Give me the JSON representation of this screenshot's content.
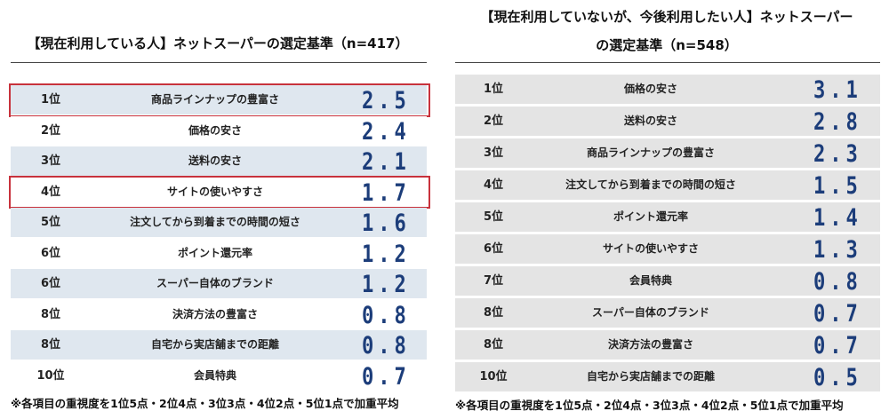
{
  "chart_data": [
    {
      "type": "table",
      "title": "【現在利用している人】ネットスーパーの選定基準（n=417）",
      "rows": [
        {
          "rank": "1位",
          "item": "商品ラインナップの豊富さ",
          "value": "2.5",
          "highlight": true
        },
        {
          "rank": "2位",
          "item": "価格の安さ",
          "value": "2.4",
          "highlight": false
        },
        {
          "rank": "3位",
          "item": "送料の安さ",
          "value": "2.1",
          "highlight": false
        },
        {
          "rank": "4位",
          "item": "サイトの使いやすさ",
          "value": "1.7",
          "highlight": true
        },
        {
          "rank": "5位",
          "item": "注文してから到着までの時間の短さ",
          "value": "1.6",
          "highlight": false
        },
        {
          "rank": "6位",
          "item": "ポイント還元率",
          "value": "1.2",
          "highlight": false
        },
        {
          "rank": "6位",
          "item": "スーパー自体のブランド",
          "value": "1.2",
          "highlight": false
        },
        {
          "rank": "8位",
          "item": "決済方法の豊富さ",
          "value": "0.8",
          "highlight": false
        },
        {
          "rank": "8位",
          "item": "自宅から実店舗までの距離",
          "value": "0.8",
          "highlight": false
        },
        {
          "rank": "10位",
          "item": "会員特典",
          "value": "0.7",
          "highlight": false
        }
      ],
      "note": "※各項目の重視度を1位5点・2位4点・3位3点・4位2点・5位1点で加重平均"
    },
    {
      "type": "table",
      "title_line1": "【現在利用していないが、今後利用したい人】ネットスーパー",
      "title_line2": "の選定基準（n=548）",
      "rows": [
        {
          "rank": "1位",
          "item": "価格の安さ",
          "value": "3.1"
        },
        {
          "rank": "2位",
          "item": "送料の安さ",
          "value": "2.8"
        },
        {
          "rank": "3位",
          "item": "商品ラインナップの豊富さ",
          "value": "2.3"
        },
        {
          "rank": "4位",
          "item": "注文してから到着までの時間の短さ",
          "value": "1.5"
        },
        {
          "rank": "5位",
          "item": "ポイント還元率",
          "value": "1.4"
        },
        {
          "rank": "6位",
          "item": "サイトの使いやすさ",
          "value": "1.3"
        },
        {
          "rank": "7位",
          "item": "会員特典",
          "value": "0.8"
        },
        {
          "rank": "8位",
          "item": "スーパー自体のブランド",
          "value": "0.7"
        },
        {
          "rank": "8位",
          "item": "決済方法の豊富さ",
          "value": "0.7"
        },
        {
          "rank": "10位",
          "item": "自宅から実店舗までの距離",
          "value": "0.5"
        }
      ],
      "note": "※各項目の重視度を1位5点・2位4点・3位3点・4位2点・5位1点で加重平均"
    }
  ],
  "colors": {
    "value_text": "#1c3d7a",
    "highlight_border": "#c8323c",
    "row_blue": "#dfe7ef",
    "row_gray": "#e4e4e4"
  }
}
